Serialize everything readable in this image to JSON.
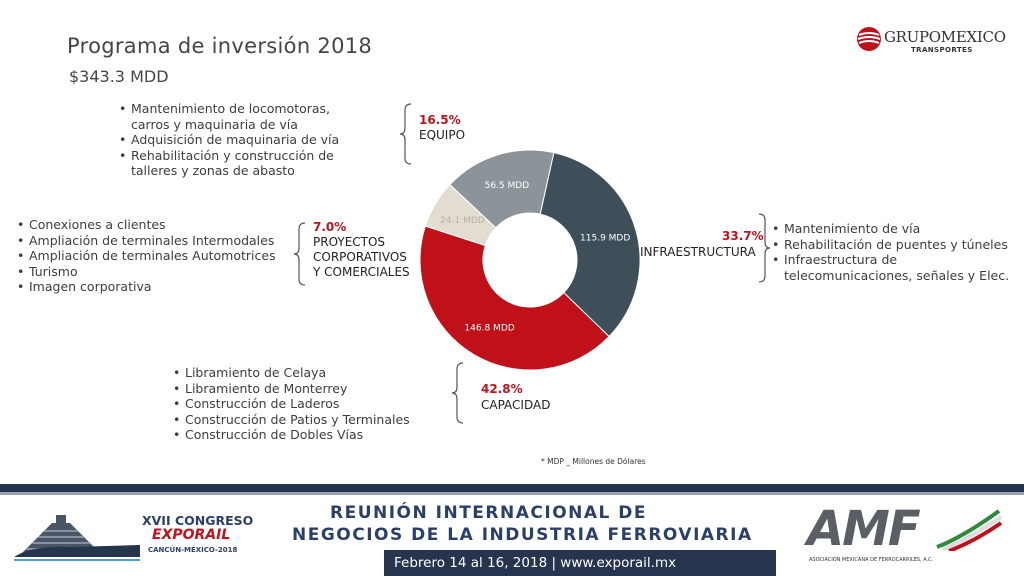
{
  "header": {
    "title": "Programa de inversión 2018",
    "subtitle": "$343.3 MDD"
  },
  "logo": {
    "name": "GRUPOMEXICO",
    "sub": "TRANSPORTES"
  },
  "colors": {
    "infraestructura": "#3e4f59",
    "capacidad": "#c0111b",
    "proyectos": "#e3ddd1",
    "equipo": "#8c9499",
    "accent_red": "#c0111b",
    "footer_blue": "#27344e"
  },
  "chart_data": {
    "type": "pie",
    "categories": [
      "INFRAESTRUCTURA",
      "CAPACIDAD",
      "PROYECTOS CORPORATIVOS Y COMERCIALES",
      "EQUIPO"
    ],
    "values": [
      115.9,
      146.8,
      24.1,
      56.5
    ],
    "value_labels": [
      "115.9 MDD",
      "146.8 MDD",
      "24.1 MDD",
      "56.5 MDD"
    ],
    "percent_labels": [
      "33.7%",
      "42.8%",
      "7.0%",
      "16.5%"
    ],
    "donut": true
  },
  "sections": {
    "equipo": {
      "pct": "16.5%",
      "name": "EQUIPO",
      "items": [
        "Mantenimiento de locomotoras, carros y maquinaria de vía",
        "Adquisición de maquinaria de vía",
        "Rehabilitación y construcción de talleres y zonas de abasto"
      ]
    },
    "proyectos": {
      "pct": "7.0%",
      "name_l1": "PROYECTOS",
      "name_l2": "CORPORATIVOS",
      "name_l3": "Y COMERCIALES",
      "items": [
        "Conexiones a clientes",
        "Ampliación de terminales Intermodales",
        "Ampliación de terminales Automotrices",
        "Turismo",
        "Imagen corporativa"
      ]
    },
    "infraestructura": {
      "pct": "33.7%",
      "name": "INFRAESTRUCTURA",
      "items": [
        "Mantenimiento de vía",
        "Rehabilitación de puentes y túneles",
        "Infraestructura de telecomunicaciones, señales y Elec."
      ]
    },
    "capacidad": {
      "pct": "42.8%",
      "name": "CAPACIDAD",
      "items": [
        "Libramiento de Celaya",
        "Libramiento de Monterrey",
        "Construcción de Laderos",
        "Construcción de Patios y Terminales",
        "Construcción de Dobles Vías"
      ]
    }
  },
  "footnote": "* MDP _ Millones de Dólares",
  "footer": {
    "event_l1": "XVII CONGRESO",
    "event_l2": "EXPORAIL",
    "event_l3": "CANCÚN-MÉXICO-2018",
    "banner_l1": "REUNIÓN INTERNACIONAL DE",
    "banner_l2": "NEGOCIOS DE LA INDUSTRIA FERROVIARIA",
    "dates": "Febrero 14 al 16, 2018 | www.exporail.mx",
    "amf": "AMF",
    "amf_sub": "ASOCIACIÓN MEXICANA DE FERROCARRILES, A.C."
  }
}
